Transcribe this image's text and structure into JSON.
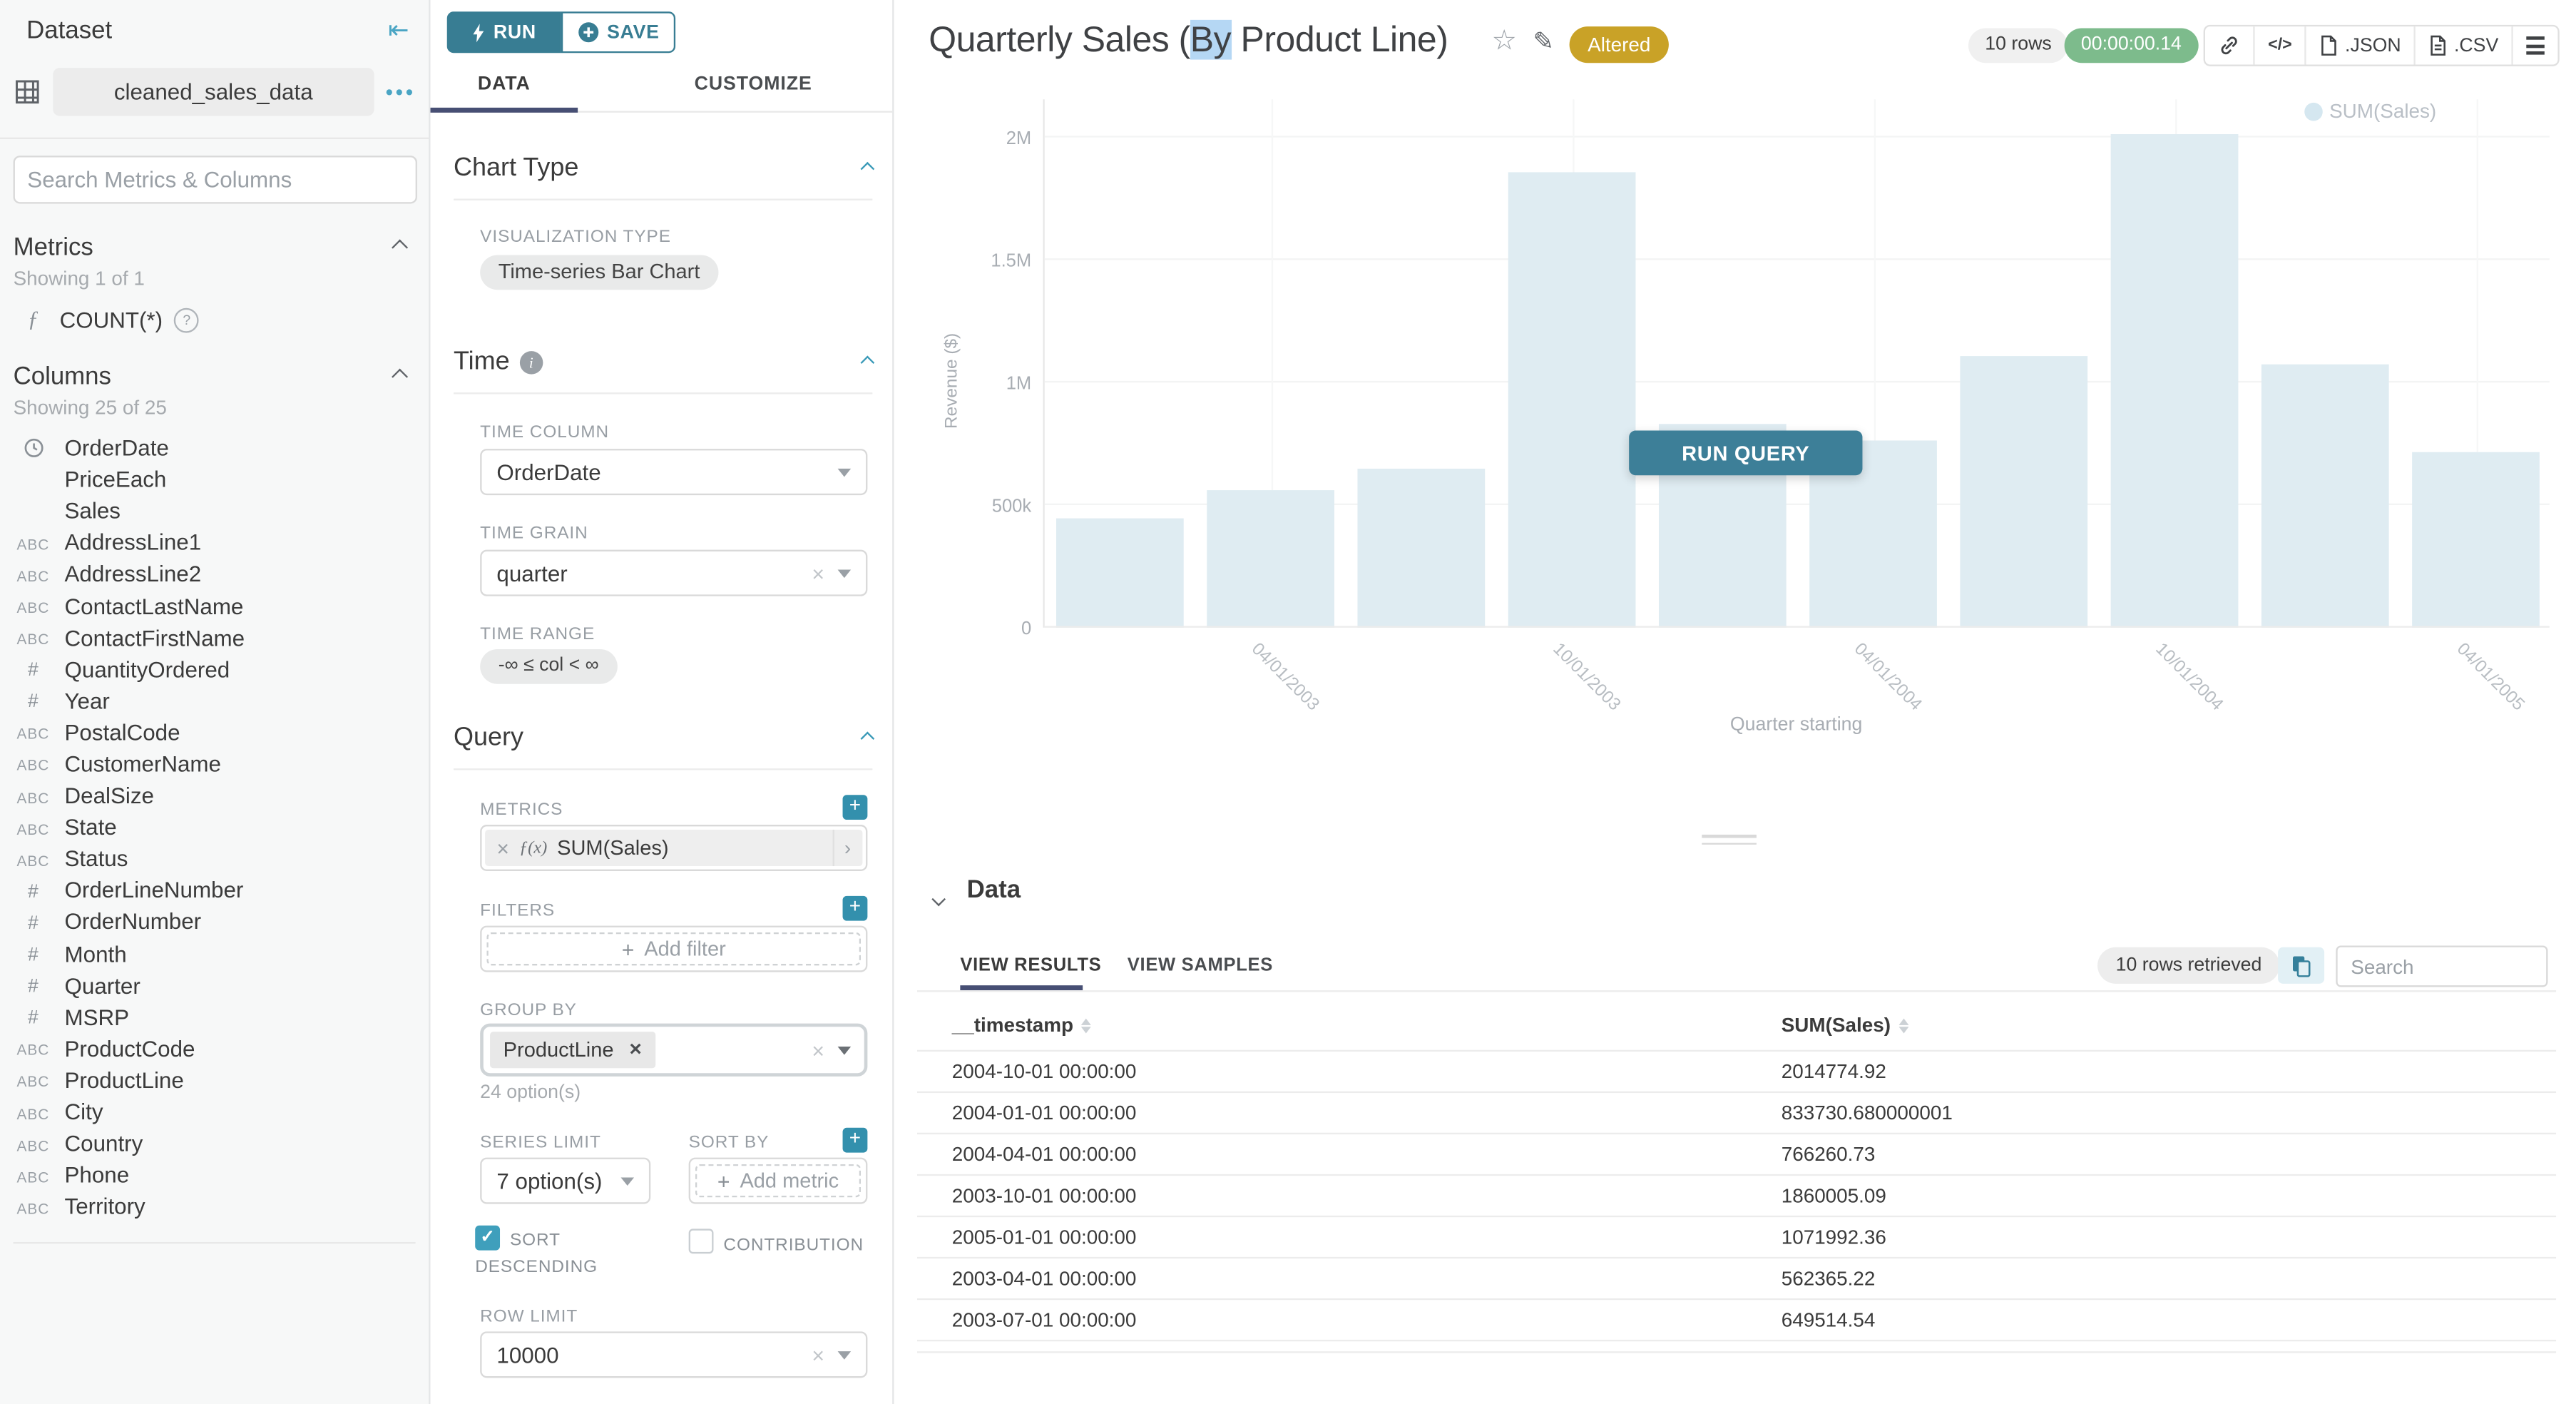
{
  "icons": {
    "collapse": "⇤",
    "more": "•••",
    "metric_fn": "ƒ",
    "fn_prefix": "ƒ(x)",
    "help": "?",
    "info": "i",
    "star": "☆",
    "edit": "✎",
    "clear": "×",
    "tag_remove": "✕",
    "check": "✓",
    "code": "</>",
    "metric_expand": "›",
    "add": "+"
  },
  "sidebar": {
    "title": "Dataset",
    "dataset_name": "cleaned_sales_data",
    "search_placeholder": "Search Metrics & Columns",
    "metrics": {
      "title": "Metrics",
      "showing": "Showing 1 of 1",
      "items": [
        {
          "name": "COUNT(*)"
        }
      ]
    },
    "columns": {
      "title": "Columns",
      "showing": "Showing 25 of 25",
      "items": [
        {
          "type": "time",
          "name": "OrderDate"
        },
        {
          "type": "none",
          "name": "PriceEach"
        },
        {
          "type": "none",
          "name": "Sales"
        },
        {
          "type": "abc",
          "name": "AddressLine1"
        },
        {
          "type": "abc",
          "name": "AddressLine2"
        },
        {
          "type": "abc",
          "name": "ContactLastName"
        },
        {
          "type": "abc",
          "name": "ContactFirstName"
        },
        {
          "type": "num",
          "name": "QuantityOrdered"
        },
        {
          "type": "num",
          "name": "Year"
        },
        {
          "type": "abc",
          "name": "PostalCode"
        },
        {
          "type": "abc",
          "name": "CustomerName"
        },
        {
          "type": "abc",
          "name": "DealSize"
        },
        {
          "type": "abc",
          "name": "State"
        },
        {
          "type": "abc",
          "name": "Status"
        },
        {
          "type": "num",
          "name": "OrderLineNumber"
        },
        {
          "type": "num",
          "name": "OrderNumber"
        },
        {
          "type": "num",
          "name": "Month"
        },
        {
          "type": "num",
          "name": "Quarter"
        },
        {
          "type": "num",
          "name": "MSRP"
        },
        {
          "type": "abc",
          "name": "ProductCode"
        },
        {
          "type": "abc",
          "name": "ProductLine"
        },
        {
          "type": "abc",
          "name": "City"
        },
        {
          "type": "abc",
          "name": "Country"
        },
        {
          "type": "abc",
          "name": "Phone"
        },
        {
          "type": "abc",
          "name": "Territory"
        }
      ]
    }
  },
  "panel": {
    "run_label": "RUN",
    "save_label": "SAVE",
    "tabs": {
      "data": "DATA",
      "customize": "CUSTOMIZE"
    },
    "chart_type": {
      "title": "Chart Type",
      "viz_label": "VISUALIZATION TYPE",
      "viz_value": "Time-series Bar Chart"
    },
    "time": {
      "title": "Time",
      "time_column_label": "TIME COLUMN",
      "time_column": "OrderDate",
      "time_grain_label": "TIME GRAIN",
      "time_grain": "quarter",
      "time_range_label": "TIME RANGE",
      "time_range": "-∞ ≤ col < ∞"
    },
    "query": {
      "title": "Query",
      "metrics_label": "METRICS",
      "metric": "SUM(Sales)",
      "filters_label": "FILTERS",
      "add_filter": "Add filter",
      "group_by_label": "GROUP BY",
      "group_by_value": "ProductLine",
      "group_by_hint": "24 option(s)",
      "series_limit_label": "SERIES LIMIT",
      "series_limit": "7 option(s)",
      "sort_by_label": "SORT BY",
      "add_metric": "Add metric",
      "sort_descending_label_1": "SORT",
      "sort_descending_label_2": "DESCENDING",
      "contribution_label": "CONTRIBUTION",
      "row_limit_label": "ROW LIMIT",
      "row_limit": "10000"
    }
  },
  "header": {
    "title_pre": "Quarterly Sales (",
    "title_selected": "By",
    "title_post": " Product Line)",
    "badge": "Altered",
    "rows_pill": "10 rows",
    "timer": "00:00:00.14",
    "toolbar": {
      "json_label": ".JSON",
      "csv_label": ".CSV"
    }
  },
  "chart_data": {
    "type": "bar",
    "x": [
      "2003-01-01",
      "2003-04-01",
      "2003-07-01",
      "2003-10-01",
      "2004-01-01",
      "2004-04-01",
      "2004-07-01",
      "2004-10-01",
      "2005-01-01",
      "2005-04-01"
    ],
    "series": [
      {
        "name": "SUM(Sales)",
        "values": [
          445000,
          562365.22,
          649514.54,
          1860005.09,
          833730.68,
          766260.73,
          1110000,
          2014774.92,
          1071992.36,
          719500
        ]
      }
    ],
    "x_tick_labels": [
      "04/01/2003",
      "10/01/2003",
      "04/01/2004",
      "10/01/2004",
      "04/01/2005"
    ],
    "x_tick_bands": [
      1,
      3,
      5,
      7,
      9
    ],
    "y_ticks": [
      {
        "label": "0",
        "value": 0
      },
      {
        "label": "500k",
        "value": 500000
      },
      {
        "label": "1M",
        "value": 1000000
      },
      {
        "label": "1.5M",
        "value": 1500000
      },
      {
        "label": "2M",
        "value": 2000000
      }
    ],
    "ylim": [
      0,
      2000000
    ],
    "xlabel": "Quarter starting",
    "ylabel": "Revenue ($)",
    "legend": [
      "SUM(Sales)"
    ],
    "legend_position": "top-right",
    "grid": true,
    "bar_color": "#dfecf2",
    "overlay_button": "RUN QUERY"
  },
  "data_panel": {
    "title": "Data",
    "tabs": {
      "results": "VIEW RESULTS",
      "samples": "VIEW SAMPLES"
    },
    "rows_retrieved": "10 rows retrieved",
    "search_placeholder": "Search",
    "table": {
      "columns": [
        "__timestamp",
        "SUM(Sales)"
      ],
      "rows": [
        [
          "2004-10-01 00:00:00",
          "2014774.92"
        ],
        [
          "2004-01-01 00:00:00",
          "833730.680000001"
        ],
        [
          "2004-04-01 00:00:00",
          "766260.73"
        ],
        [
          "2003-10-01 00:00:00",
          "1860005.09"
        ],
        [
          "2005-01-01 00:00:00",
          "1071992.36"
        ],
        [
          "2003-04-01 00:00:00",
          "562365.22"
        ],
        [
          "2003-07-01 00:00:00",
          "649514.54"
        ]
      ]
    }
  }
}
